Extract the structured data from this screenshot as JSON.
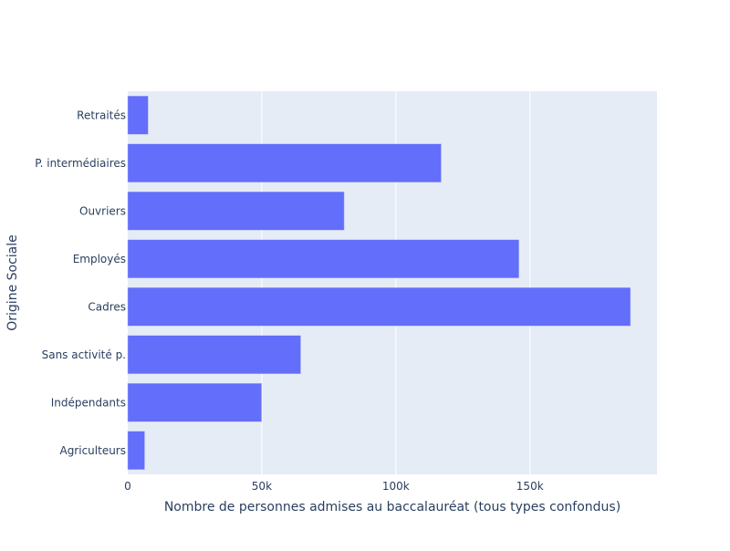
{
  "chart_data": {
    "type": "bar",
    "orientation": "horizontal",
    "categories": [
      "Agriculteurs",
      "Indépendants",
      "Sans activité p.",
      "Cadres",
      "Employés",
      "Ouvriers",
      "P. intermédiaires",
      "Retraités"
    ],
    "values": [
      6300,
      49900,
      64500,
      187500,
      145900,
      80700,
      116900,
      7600
    ],
    "xlabel": "Nombre de personnes admises au baccalauréat (tous types confondus)",
    "ylabel": "Origine Sociale",
    "xlim": [
      0,
      197400
    ],
    "xticks": [
      0,
      50000,
      100000,
      150000
    ],
    "xtick_labels": [
      "0",
      "50k",
      "100k",
      "150k"
    ],
    "grid": true,
    "colors": {
      "bar": "#636efa",
      "plot_bg": "#e5ecf6",
      "grid": "#ffffff",
      "text": "#2a3f5f"
    }
  }
}
